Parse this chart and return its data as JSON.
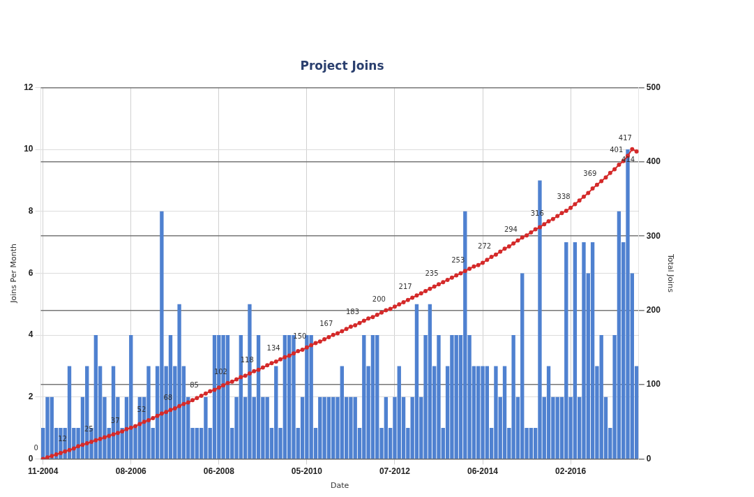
{
  "chart_data": {
    "type": "bar",
    "title": "Project Joins",
    "xlabel": "Date",
    "ylabel": "Joins Per Month",
    "y2label": "Total Joins",
    "categories": [
      "11-2004",
      null,
      null,
      null,
      null,
      null,
      null,
      null,
      null,
      null,
      null,
      null,
      null,
      null,
      null,
      null,
      null,
      null,
      null,
      null,
      "08-2006",
      null,
      null,
      null,
      null,
      null,
      null,
      null,
      null,
      null,
      null,
      null,
      null,
      null,
      null,
      null,
      null,
      null,
      null,
      null,
      "06-2008",
      null,
      null,
      null,
      null,
      null,
      null,
      null,
      null,
      null,
      null,
      null,
      null,
      null,
      null,
      null,
      null,
      null,
      null,
      null,
      "05-2010",
      null,
      null,
      null,
      null,
      null,
      null,
      null,
      null,
      null,
      null,
      null,
      null,
      null,
      null,
      null,
      null,
      null,
      null,
      null,
      "07-2012",
      null,
      null,
      null,
      null,
      null,
      null,
      null,
      null,
      null,
      null,
      null,
      null,
      null,
      null,
      null,
      null,
      null,
      null,
      null,
      "06-2014",
      null,
      null,
      null,
      null,
      null,
      null,
      null,
      null,
      null,
      null,
      null,
      null,
      null,
      null,
      null,
      null,
      null,
      null,
      null,
      "02-2016",
      null,
      null,
      null,
      null,
      null,
      null,
      null,
      null,
      null,
      null,
      null,
      null,
      null,
      null,
      null
    ],
    "series": [
      {
        "color": "#4f81d0",
        "values": [
          1,
          2,
          2,
          1,
          1,
          1,
          3,
          1,
          1,
          2,
          3,
          1,
          4,
          3,
          2,
          1,
          3,
          2,
          1,
          2,
          4,
          1,
          2,
          2,
          3,
          1,
          3,
          8,
          3,
          4,
          3,
          5,
          3,
          2,
          1,
          1,
          1,
          2,
          1,
          4,
          4,
          4,
          4,
          1,
          2,
          4,
          2,
          5,
          2,
          4,
          2,
          2,
          1,
          3,
          1,
          4,
          4,
          4,
          1,
          2,
          4,
          4,
          1,
          2,
          2,
          2,
          2,
          2,
          3,
          2,
          2,
          2,
          1,
          4,
          3,
          4,
          4,
          1,
          2,
          1,
          2,
          3,
          2,
          1,
          2,
          5,
          2,
          4,
          5,
          3,
          4,
          1,
          3,
          4,
          4,
          4,
          8,
          4,
          3,
          3,
          3,
          3,
          1,
          3,
          2,
          3,
          1,
          4,
          2,
          6,
          1,
          1,
          1,
          9,
          2,
          3,
          2,
          2,
          2,
          7,
          2,
          7,
          2,
          7,
          6,
          7,
          3,
          4,
          2,
          1,
          4,
          8,
          7,
          10,
          6,
          3
        ]
      },
      {
        "type": "line",
        "axis": "y2",
        "color": "#d42a2a",
        "values": [
          0,
          2,
          4,
          6,
          8,
          10,
          12,
          14,
          17,
          19,
          21,
          23,
          25,
          27,
          29,
          31,
          33,
          35,
          37,
          40,
          42,
          44,
          47,
          50,
          52,
          55,
          58,
          61,
          63,
          66,
          68,
          71,
          74,
          76,
          79,
          82,
          85,
          88,
          91,
          93,
          96,
          99,
          102,
          104,
          107,
          110,
          112,
          115,
          118,
          120,
          123,
          126,
          129,
          131,
          134,
          137,
          139,
          142,
          145,
          147,
          150,
          153,
          156,
          158,
          161,
          164,
          167,
          169,
          172,
          175,
          178,
          180,
          183,
          186,
          189,
          191,
          194,
          197,
          200,
          202,
          205,
          208,
          211,
          214,
          217,
          220,
          223,
          226,
          229,
          232,
          235,
          238,
          241,
          244,
          247,
          250,
          253,
          256,
          259,
          261,
          264,
          268,
          272,
          275,
          279,
          283,
          286,
          290,
          294,
          298,
          301,
          305,
          309,
          312,
          316,
          320,
          323,
          327,
          331,
          334,
          338,
          343,
          348,
          353,
          358,
          364,
          369,
          374,
          379,
          385,
          390,
          396,
          401,
          408,
          417,
          414
        ],
        "value_labels": [
          "0",
          null,
          null,
          null,
          null,
          null,
          "12",
          null,
          null,
          null,
          null,
          null,
          "25",
          null,
          null,
          null,
          null,
          null,
          "37",
          null,
          null,
          null,
          null,
          null,
          "52",
          null,
          null,
          null,
          null,
          null,
          "68",
          null,
          null,
          null,
          null,
          null,
          "85",
          null,
          null,
          null,
          null,
          null,
          "102",
          null,
          null,
          null,
          null,
          null,
          "118",
          null,
          null,
          null,
          null,
          null,
          "134",
          null,
          null,
          null,
          null,
          null,
          "150",
          null,
          null,
          null,
          null,
          null,
          "167",
          null,
          null,
          null,
          null,
          null,
          "183",
          null,
          null,
          null,
          null,
          null,
          "200",
          null,
          null,
          null,
          null,
          null,
          "217",
          null,
          null,
          null,
          null,
          null,
          "235",
          null,
          null,
          null,
          null,
          null,
          "253",
          null,
          null,
          null,
          null,
          null,
          "272",
          null,
          null,
          null,
          null,
          null,
          "294",
          null,
          null,
          null,
          null,
          null,
          "316",
          null,
          null,
          null,
          null,
          null,
          "338",
          null,
          null,
          null,
          null,
          null,
          "369",
          null,
          null,
          null,
          null,
          null,
          "401",
          null,
          "417",
          "414"
        ]
      }
    ],
    "ylim": [
      0,
      12
    ],
    "yticks": [
      0,
      2,
      4,
      6,
      8,
      10,
      12
    ],
    "y2lim": [
      0,
      500
    ],
    "y2ticks": [
      0,
      100,
      200,
      300,
      400,
      500
    ],
    "grid": true,
    "legend": false,
    "marker": "circle"
  }
}
